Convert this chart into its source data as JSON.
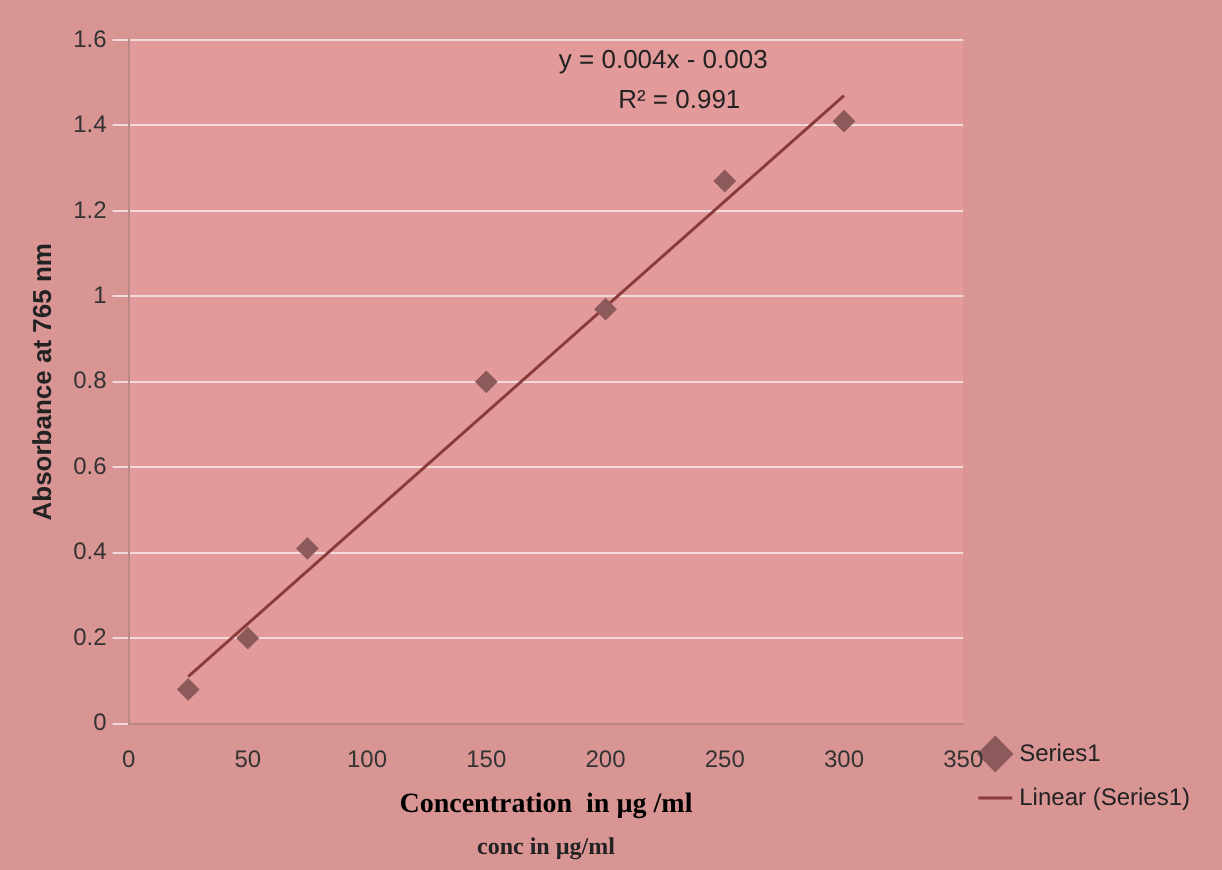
{
  "chart_data": {
    "type": "scatter",
    "xlabel": "Concentration  in µg /ml",
    "ylabel": "Absorbance at 765 nm",
    "xlim": [
      0,
      350
    ],
    "xticks": [
      0,
      50,
      100,
      150,
      200,
      250,
      300,
      350
    ],
    "ylim": [
      0,
      1.6
    ],
    "yticks": [
      0,
      0.2,
      0.4,
      0.6,
      0.8,
      1,
      1.2,
      1.4,
      1.6
    ],
    "series": [
      {
        "name": "Series1",
        "marker": "diamond",
        "color": "#8c5a5a",
        "x": [
          25,
          50,
          75,
          150,
          200,
          250,
          300
        ],
        "values": [
          0.08,
          0.2,
          0.41,
          0.8,
          0.97,
          1.27,
          1.41
        ]
      },
      {
        "name": "Linear (Series1)",
        "type": "line",
        "marker": "none",
        "color": "#8b3a3a",
        "x": [
          25,
          300
        ],
        "values": [
          0.11,
          1.47
        ]
      }
    ],
    "grid": "y",
    "legend": "bottom right",
    "annotations": [
      "y = 0.004x - 0.003",
      "R² = 0.991",
      "conc in µg/ml"
    ]
  }
}
